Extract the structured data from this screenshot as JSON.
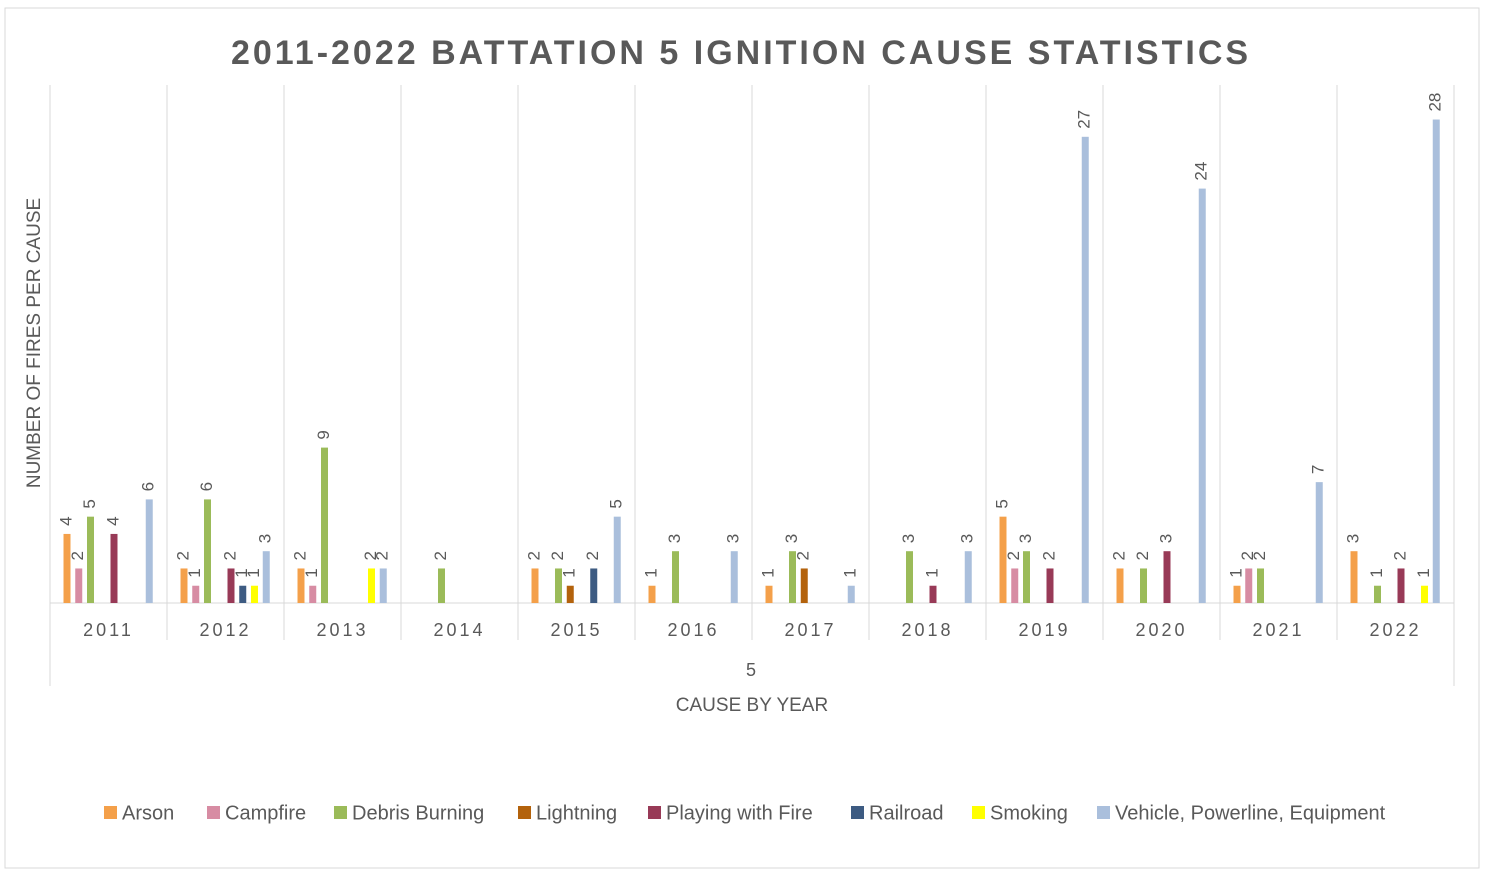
{
  "chart_data": {
    "type": "bar",
    "title": "2011-2022 BATTATION 5 IGNITION CAUSE STATISTICS",
    "y_axis_label": "NUMBER OF FIRES PER CAUSE",
    "x_axis_label": "CAUSE BY YEAR",
    "x_axis_group_label": "5",
    "categories": [
      "2011",
      "2012",
      "2013",
      "2014",
      "2015",
      "2016",
      "2017",
      "2018",
      "2019",
      "2020",
      "2021",
      "2022"
    ],
    "ylim": [
      0,
      30
    ],
    "legend": "bottom",
    "series": [
      {
        "name": "Arson",
        "color": "#f4a04a",
        "values": [
          4,
          2,
          2,
          null,
          2,
          1,
          1,
          null,
          5,
          2,
          1,
          3
        ]
      },
      {
        "name": "Campfire",
        "color": "#d78ca3",
        "values": [
          2,
          1,
          1,
          null,
          null,
          null,
          null,
          null,
          2,
          null,
          2,
          null
        ]
      },
      {
        "name": "Debris Burning",
        "color": "#9bbb59",
        "values": [
          5,
          6,
          9,
          2,
          2,
          3,
          3,
          3,
          3,
          2,
          2,
          1
        ]
      },
      {
        "name": "Lightning",
        "color": "#b3620c",
        "values": [
          null,
          null,
          null,
          null,
          1,
          null,
          2,
          null,
          null,
          null,
          null,
          null
        ]
      },
      {
        "name": "Playing with Fire",
        "color": "#983a57",
        "values": [
          4,
          2,
          null,
          null,
          null,
          null,
          null,
          1,
          2,
          3,
          null,
          2
        ]
      },
      {
        "name": "Railroad",
        "color": "#3d5b82",
        "values": [
          null,
          1,
          null,
          null,
          2,
          null,
          null,
          null,
          null,
          null,
          null,
          null
        ]
      },
      {
        "name": "Smoking",
        "color": "#ffff00",
        "values": [
          null,
          1,
          2,
          null,
          null,
          null,
          null,
          null,
          null,
          null,
          null,
          1
        ]
      },
      {
        "name": "Vehicle, Powerline, Equipment",
        "color": "#aabfdc",
        "values": [
          6,
          3,
          2,
          null,
          5,
          3,
          1,
          3,
          27,
          24,
          7,
          28
        ]
      }
    ]
  }
}
